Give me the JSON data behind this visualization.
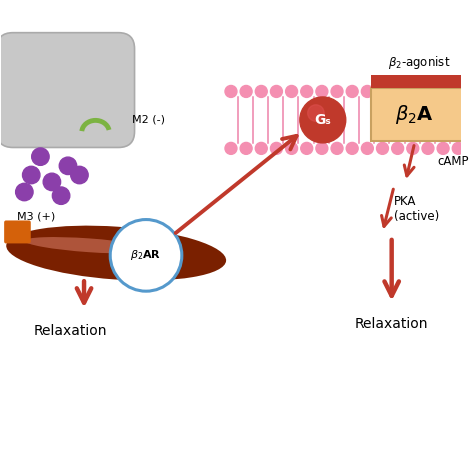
{
  "bg_color": "#ffffff",
  "beta2_agonist_label": "β₂-agonist",
  "Gs_label": "Gₛ",
  "M2_label": "M2 (-)",
  "M3_label": "M3 (+)",
  "cAMP_label": "cAMP",
  "PKA_label": "PKA\n(active)",
  "relaxation_label": "Relaxation",
  "membrane_dot_color": "#f48fb1",
  "membrane_line_color": "#ee82aa",
  "receptor_box_color": "#f5c98a",
  "drug_bar_color": "#c0392b",
  "Gs_color": "#c0392b",
  "arrow_color": "#c0392b",
  "muscle_color_dark": "#7a2000",
  "muscle_highlight": "#d9806a",
  "nerve_color": "#c8c8c8",
  "nerve_edge": "#aaaaaa",
  "m2_receptor_color": "#7cb342",
  "purple_dot_color": "#8b3faa",
  "m3_receptor_color": "#d4610a",
  "circle_outline": "#5599cc",
  "receptor_edge": "#c8a060"
}
